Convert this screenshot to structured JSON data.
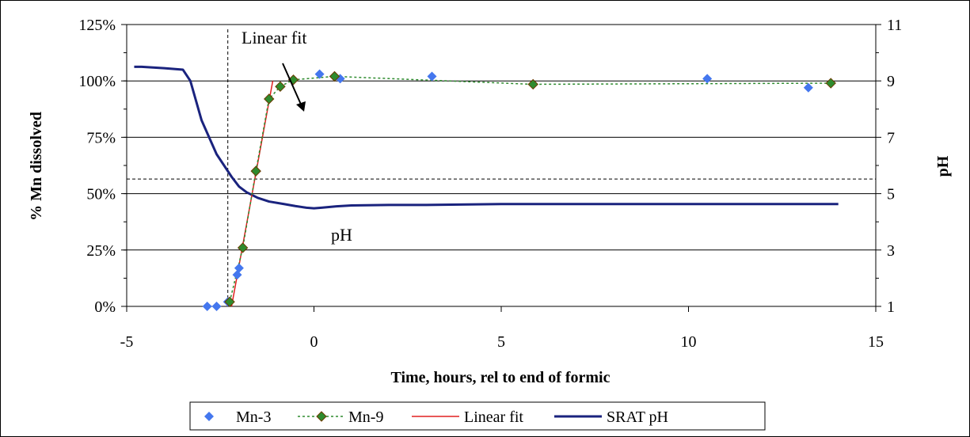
{
  "chart_data": {
    "type": "scatter",
    "xlabel": "Time, hours, rel to end of formic",
    "ylabel": "% Mn dissolved",
    "y2label": "pH",
    "xlim": [
      -5,
      15
    ],
    "ylim": [
      0,
      125
    ],
    "y2lim": [
      1,
      11
    ],
    "x_ticks": [
      "-5",
      "0",
      "5",
      "10",
      "15"
    ],
    "y_ticks": [
      "0%",
      "25%",
      "50%",
      "75%",
      "100%",
      "125%"
    ],
    "y2_ticks": [
      "1",
      "3",
      "5",
      "7",
      "9",
      "11"
    ],
    "x_tick_values": [
      -5,
      0,
      5,
      10,
      15
    ],
    "y_tick_values": [
      0,
      25,
      50,
      75,
      100,
      125
    ],
    "y2_tick_values": [
      1,
      3,
      5,
      7,
      9,
      11
    ],
    "gridlines_y": true,
    "legend_position": "bottom",
    "annotations": {
      "linear_fit_label": "Linear fit",
      "ph_label": "pH"
    },
    "reference_lines": {
      "vertical_x": -2.3,
      "horizontal_y": 56.5
    },
    "series": [
      {
        "name": "Mn-3",
        "kind": "markers",
        "axis": "left",
        "color": "#4477EE",
        "x": [
          -2.85,
          -2.6,
          -2.3,
          -2.05,
          -2.0,
          0.15,
          0.7,
          3.15,
          10.5,
          13.2
        ],
        "y": [
          0,
          0,
          2,
          14,
          17,
          103,
          101,
          102,
          101,
          97
        ]
      },
      {
        "name": "Mn-9",
        "kind": "markers+dashed",
        "axis": "left",
        "color": "#2E8B2E",
        "x": [
          -2.25,
          -1.9,
          -1.55,
          -1.2,
          -0.9,
          -0.55,
          0.55,
          5.85,
          13.8
        ],
        "y": [
          2,
          26,
          60,
          92,
          97.5,
          100.5,
          102,
          98.5,
          99
        ]
      },
      {
        "name": "Linear fit",
        "kind": "line",
        "axis": "left",
        "color": "#E02020",
        "x": [
          -2.2,
          -1.1
        ],
        "y": [
          0,
          100
        ]
      },
      {
        "name": "SRAT pH",
        "kind": "line",
        "axis": "right",
        "color": "#1A237E",
        "x": [
          -4.8,
          -4.6,
          -4.0,
          -3.5,
          -3.3,
          -3.15,
          -3.0,
          -2.8,
          -2.6,
          -2.4,
          -2.2,
          -2.0,
          -1.8,
          -1.5,
          -1.2,
          -0.8,
          -0.5,
          -0.2,
          0.0,
          0.2,
          0.6,
          1.0,
          2.0,
          3.0,
          5.0,
          7.0,
          10.0,
          12.0,
          14.0
        ],
        "y": [
          9.5,
          9.5,
          9.45,
          9.4,
          9.0,
          8.3,
          7.6,
          7.0,
          6.4,
          6.0,
          5.6,
          5.25,
          5.05,
          4.85,
          4.72,
          4.63,
          4.56,
          4.5,
          4.48,
          4.5,
          4.55,
          4.58,
          4.6,
          4.6,
          4.63,
          4.63,
          4.63,
          4.63,
          4.63
        ]
      }
    ]
  }
}
